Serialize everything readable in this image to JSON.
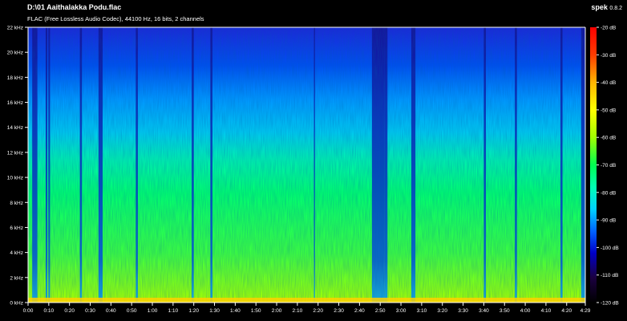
{
  "header": {
    "file_title": "D:\\01 Aaithalakka Podu.flac",
    "file_info": "FLAC (Free Lossless Audio Codec), 44100 Hz, 16 bits, 2 channels",
    "app_name": "spek",
    "app_version": "0.8.2"
  },
  "colors": {
    "background": "#000000",
    "axis": "#ffffff",
    "palette": [
      "#000000",
      "#1b0040",
      "#0000c8",
      "#0064ff",
      "#00d2ff",
      "#00ffb4",
      "#00ff50",
      "#a0ff00",
      "#ffff00",
      "#ffb400",
      "#ff3c00",
      "#ff0000"
    ]
  },
  "frequency_axis": {
    "labels": [
      "0 kHz",
      "2 kHz",
      "4 kHz",
      "6 kHz",
      "8 kHz",
      "10 kHz",
      "12 kHz",
      "14 kHz",
      "16 kHz",
      "18 kHz",
      "20 kHz",
      "22 kHz"
    ],
    "values_khz": [
      0,
      2,
      4,
      6,
      8,
      10,
      12,
      14,
      16,
      18,
      20,
      22
    ]
  },
  "time_axis": {
    "labels": [
      "0:00",
      "0:10",
      "0:20",
      "0:30",
      "0:40",
      "0:50",
      "1:00",
      "1:10",
      "1:20",
      "1:30",
      "1:40",
      "1:50",
      "2:00",
      "2:10",
      "2:20",
      "2:30",
      "2:40",
      "2:50",
      "3:00",
      "3:10",
      "3:20",
      "3:30",
      "3:40",
      "3:50",
      "4:00",
      "4:10",
      "4:20",
      "4:29"
    ],
    "values_s": [
      0,
      10,
      20,
      30,
      40,
      50,
      60,
      70,
      80,
      90,
      100,
      110,
      120,
      130,
      140,
      150,
      160,
      170,
      180,
      190,
      200,
      210,
      220,
      230,
      240,
      250,
      260,
      269
    ],
    "duration_s": 269
  },
  "db_scale": {
    "labels": [
      "-20 dB",
      "-30 dB",
      "-40 dB",
      "-50 dB",
      "-60 dB",
      "-70 dB",
      "-80 dB",
      "-90 dB",
      "-100 dB",
      "-110 dB",
      "-120 dB"
    ],
    "values_db": [
      -20,
      -30,
      -40,
      -50,
      -60,
      -70,
      -80,
      -90,
      -100,
      -110,
      -120
    ]
  },
  "dark_bands_s": [
    [
      2,
      4.5
    ],
    [
      8.5,
      9.3
    ],
    [
      9.8,
      10.6
    ],
    [
      25,
      26
    ],
    [
      34,
      36
    ],
    [
      52,
      53
    ],
    [
      79,
      80
    ],
    [
      88,
      89
    ],
    [
      138,
      138.5
    ],
    [
      166,
      172
    ],
    [
      172,
      173.5
    ],
    [
      185,
      187
    ],
    [
      220,
      221
    ],
    [
      235,
      236
    ],
    [
      257,
      258
    ],
    [
      267,
      269
    ]
  ]
}
